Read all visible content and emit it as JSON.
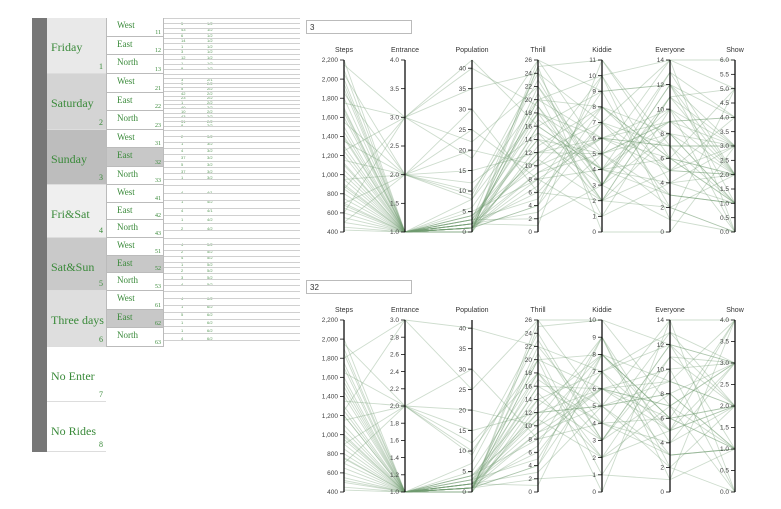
{
  "tree": {
    "days": [
      {
        "name": "Friday",
        "id": "1",
        "regions": [
          {
            "name": "West",
            "id": "11"
          },
          {
            "name": "East",
            "id": "12"
          },
          {
            "name": "North",
            "id": "13"
          }
        ],
        "cells": [
          [
            "5",
            "1/2"
          ],
          [
            "43",
            "1/2"
          ],
          [
            "6",
            "1/2"
          ],
          [
            "14",
            "1/2"
          ],
          [
            "1",
            "1/2"
          ],
          [
            "3",
            "1/2"
          ],
          [
            "12",
            "1/2"
          ],
          [
            "1",
            "1/2"
          ],
          [
            "9",
            "1/2"
          ]
        ]
      },
      {
        "name": "Saturday",
        "id": "2",
        "regions": [
          {
            "name": "West",
            "id": "21"
          },
          {
            "name": "East",
            "id": "22"
          },
          {
            "name": "North",
            "id": "23"
          }
        ],
        "cells": [
          [
            "3",
            "2/1"
          ],
          [
            "9",
            "2/2"
          ],
          [
            "5",
            "2/2"
          ],
          [
            "42",
            "2/2"
          ],
          [
            "23",
            "2/2"
          ],
          [
            "1",
            "2/2"
          ],
          [
            "40",
            "2/2"
          ],
          [
            "10",
            "2/2"
          ],
          [
            "43",
            "2/2"
          ],
          [
            "31",
            "2/2"
          ],
          [
            "8",
            "2/2"
          ]
        ]
      },
      {
        "name": "Sunday",
        "id": "3",
        "regions": [
          {
            "name": "West",
            "id": "31"
          },
          {
            "name": "East",
            "id": "32"
          },
          {
            "name": "North",
            "id": "33"
          }
        ],
        "cells": [
          [
            "2",
            "3/2"
          ],
          [
            "1",
            "3/2"
          ],
          [
            "4",
            "3/2"
          ],
          [
            "37",
            "3/2"
          ],
          [
            "5",
            "3/2"
          ],
          [
            "37",
            "3/2"
          ],
          [
            "1",
            "3/2"
          ]
        ]
      },
      {
        "name": "Fri&Sat",
        "id": "4",
        "regions": [
          {
            "name": "West",
            "id": "41"
          },
          {
            "name": "East",
            "id": "42"
          },
          {
            "name": "North",
            "id": "43"
          }
        ],
        "cells": [
          [
            "4",
            "4/1"
          ],
          [
            "1",
            "4/2"
          ],
          [
            "4",
            "4/1"
          ],
          [
            "1",
            "4/2"
          ],
          [
            "2",
            "4/2"
          ]
        ]
      },
      {
        "name": "Sat&Sun",
        "id": "5",
        "regions": [
          {
            "name": "West",
            "id": "51"
          },
          {
            "name": "East",
            "id": "52"
          },
          {
            "name": "North",
            "id": "53"
          }
        ],
        "cells": [
          [
            "4",
            "5/2"
          ],
          [
            "2",
            "5/2"
          ],
          [
            "4",
            "5/2"
          ],
          [
            "1",
            "5/2"
          ],
          [
            "2",
            "5/2"
          ],
          [
            "3",
            "5/2"
          ],
          [
            "4",
            "5/2"
          ]
        ]
      },
      {
        "name": "Three days",
        "id": "6",
        "regions": [
          {
            "name": "West",
            "id": "61"
          },
          {
            "name": "East",
            "id": "62"
          },
          {
            "name": "North",
            "id": "63"
          }
        ],
        "cells": [
          [
            "4",
            "6/2"
          ],
          [
            "1",
            "6/2"
          ],
          [
            "5",
            "6/2"
          ],
          [
            "1",
            "6/2"
          ],
          [
            "1",
            "6/2"
          ],
          [
            "4",
            "6/2"
          ]
        ]
      },
      {
        "name": "No Enter",
        "id": "7",
        "regions": [],
        "cells": []
      },
      {
        "name": "No Rides",
        "id": "8",
        "regions": [],
        "cells": []
      }
    ]
  },
  "colors": {
    "line": "#6f9a6f",
    "label": "#3a8a3a",
    "bar": "#777777",
    "selected": "#c8c8c8"
  },
  "chart_data": [
    {
      "type": "parallel-coordinates",
      "box_label": "3",
      "axes": [
        {
          "name": "Steps",
          "min": 400,
          "max": 2200,
          "ticks": [
            400,
            600,
            800,
            1000,
            1200,
            1400,
            1600,
            1800,
            2000,
            2200
          ],
          "fmt": "comma"
        },
        {
          "name": "Entrance",
          "min": 1,
          "max": 4,
          "ticks": [
            1.0,
            1.5,
            2.0,
            2.5,
            3.0,
            3.5,
            4.0
          ],
          "fmt": "1dp"
        },
        {
          "name": "Population",
          "min": 0,
          "max": 42,
          "ticks": [
            0,
            5,
            10,
            15,
            20,
            25,
            30,
            35,
            40
          ],
          "fmt": "int"
        },
        {
          "name": "Thrill",
          "min": 0,
          "max": 26,
          "ticks": [
            0,
            2,
            4,
            6,
            8,
            10,
            12,
            14,
            16,
            18,
            20,
            22,
            24,
            26
          ],
          "fmt": "int"
        },
        {
          "name": "Kiddie",
          "min": 0,
          "max": 11,
          "ticks": [
            0,
            1,
            2,
            3,
            4,
            5,
            6,
            7,
            8,
            9,
            10,
            11
          ],
          "fmt": "int"
        },
        {
          "name": "Everyone",
          "min": 0,
          "max": 14,
          "ticks": [
            0,
            2,
            4,
            6,
            8,
            10,
            12,
            14
          ],
          "fmt": "int"
        },
        {
          "name": "Show",
          "min": 0,
          "max": 6,
          "ticks": [
            0.0,
            0.5,
            1.0,
            1.5,
            2.0,
            2.5,
            3.0,
            3.5,
            4.0,
            4.5,
            5.0,
            5.5,
            6.0
          ],
          "fmt": "1dp"
        }
      ],
      "records": [
        [
          2200,
          1,
          1,
          20,
          8,
          8,
          2
        ],
        [
          2100,
          1,
          2,
          18,
          6,
          10,
          3
        ],
        [
          2000,
          1,
          1,
          22,
          4,
          6,
          1
        ],
        [
          1900,
          1,
          0,
          16,
          9,
          12,
          2
        ],
        [
          1800,
          1,
          3,
          14,
          5,
          9,
          3
        ],
        [
          1700,
          1,
          1,
          12,
          7,
          7,
          1
        ],
        [
          1650,
          1,
          2,
          19,
          3,
          11,
          2
        ],
        [
          1600,
          1,
          4,
          10,
          6,
          5,
          4
        ],
        [
          1500,
          1,
          1,
          15,
          2,
          8,
          1
        ],
        [
          1450,
          1,
          0,
          13,
          8,
          6,
          2
        ],
        [
          1400,
          1,
          2,
          11,
          10,
          4,
          3
        ],
        [
          1300,
          1,
          1,
          9,
          5,
          3,
          1
        ],
        [
          1250,
          1,
          3,
          17,
          4,
          13,
          2
        ],
        [
          1200,
          1,
          5,
          8,
          6,
          7,
          3
        ],
        [
          1100,
          1,
          2,
          21,
          1,
          10,
          0
        ],
        [
          1050,
          1,
          1,
          7,
          9,
          2,
          2
        ],
        [
          1000,
          1,
          4,
          14,
          3,
          8,
          1
        ],
        [
          950,
          1,
          2,
          6,
          7,
          5,
          2
        ],
        [
          900,
          1,
          1,
          12,
          5,
          9,
          4
        ],
        [
          850,
          1,
          6,
          18,
          2,
          11,
          3
        ],
        [
          800,
          1,
          3,
          5,
          8,
          6,
          1
        ],
        [
          750,
          1,
          1,
          16,
          4,
          4,
          2
        ],
        [
          700,
          1,
          2,
          9,
          6,
          7,
          0
        ],
        [
          650,
          1,
          8,
          23,
          3,
          12,
          3
        ],
        [
          600,
          1,
          1,
          4,
          7,
          3,
          1
        ],
        [
          550,
          1,
          4,
          11,
          2,
          5,
          2
        ],
        [
          500,
          1,
          2,
          3,
          5,
          2,
          0
        ],
        [
          450,
          1,
          1,
          8,
          1,
          4,
          1
        ],
        [
          420,
          1,
          3,
          2,
          3,
          1,
          0
        ],
        [
          2050,
          2,
          10,
          20,
          6,
          9,
          2
        ],
        [
          1850,
          2,
          8,
          18,
          5,
          8,
          3
        ],
        [
          1550,
          2,
          12,
          15,
          4,
          10,
          2
        ],
        [
          1350,
          2,
          9,
          24,
          3,
          12,
          1
        ],
        [
          1150,
          2,
          15,
          12,
          6,
          6,
          2
        ],
        [
          950,
          2,
          20,
          10,
          8,
          5,
          3
        ],
        [
          700,
          2,
          25,
          8,
          4,
          3,
          1
        ],
        [
          500,
          2,
          30,
          6,
          2,
          2,
          0
        ],
        [
          2150,
          3,
          18,
          26,
          5,
          14,
          5
        ],
        [
          1750,
          3,
          22,
          22,
          3,
          13,
          4
        ],
        [
          1250,
          3,
          35,
          24,
          7,
          14,
          6
        ],
        [
          850,
          3,
          40,
          19,
          2,
          11,
          5
        ],
        [
          600,
          3,
          42,
          16,
          4,
          9,
          4
        ],
        [
          1950,
          1,
          0,
          25,
          11,
          7,
          3
        ],
        [
          1680,
          1,
          1,
          4,
          10,
          1,
          5
        ],
        [
          1380,
          1,
          0,
          26,
          9,
          12,
          4
        ],
        [
          1120,
          1,
          2,
          1,
          11,
          6,
          5
        ],
        [
          880,
          1,
          1,
          20,
          10,
          14,
          0
        ],
        [
          680,
          1,
          3,
          25,
          0,
          0,
          3
        ]
      ]
    },
    {
      "type": "parallel-coordinates",
      "box_label": "32",
      "axes": [
        {
          "name": "Steps",
          "min": 400,
          "max": 2200,
          "ticks": [
            400,
            600,
            800,
            1000,
            1200,
            1400,
            1600,
            1800,
            2000,
            2200
          ],
          "fmt": "comma"
        },
        {
          "name": "Entrance",
          "min": 1,
          "max": 3,
          "ticks": [
            1.0,
            1.2,
            1.4,
            1.6,
            1.8,
            2.0,
            2.2,
            2.4,
            2.6,
            2.8,
            3.0
          ],
          "fmt": "1dp"
        },
        {
          "name": "Population",
          "min": 0,
          "max": 42,
          "ticks": [
            0,
            5,
            10,
            15,
            20,
            25,
            30,
            35,
            40
          ],
          "fmt": "int"
        },
        {
          "name": "Thrill",
          "min": 0,
          "max": 26,
          "ticks": [
            0,
            2,
            4,
            6,
            8,
            10,
            12,
            14,
            16,
            18,
            20,
            22,
            24,
            26
          ],
          "fmt": "int"
        },
        {
          "name": "Kiddie",
          "min": 0,
          "max": 10,
          "ticks": [
            0,
            1,
            2,
            3,
            4,
            5,
            6,
            7,
            8,
            9,
            10
          ],
          "fmt": "int"
        },
        {
          "name": "Everyone",
          "min": 0,
          "max": 14,
          "ticks": [
            0,
            2,
            4,
            6,
            8,
            10,
            12,
            14
          ],
          "fmt": "int"
        },
        {
          "name": "Show",
          "min": 0,
          "max": 4,
          "ticks": [
            0.0,
            0.5,
            1.0,
            1.5,
            2.0,
            2.5,
            3.0,
            3.5,
            4.0
          ],
          "fmt": "1dp"
        }
      ],
      "records": [
        [
          2000,
          1,
          1,
          20,
          8,
          9,
          2
        ],
        [
          1900,
          1,
          2,
          16,
          6,
          10,
          3
        ],
        [
          1850,
          1,
          1,
          22,
          4,
          6,
          1
        ],
        [
          1750,
          1,
          0,
          14,
          7,
          12,
          2
        ],
        [
          1700,
          1,
          3,
          12,
          5,
          8,
          1
        ],
        [
          1600,
          1,
          1,
          18,
          3,
          11,
          2
        ],
        [
          1500,
          1,
          2,
          10,
          6,
          5,
          4
        ],
        [
          1450,
          1,
          1,
          15,
          2,
          7,
          1
        ],
        [
          1400,
          1,
          0,
          13,
          8,
          6,
          2
        ],
        [
          1300,
          1,
          2,
          11,
          9,
          4,
          3
        ],
        [
          1250,
          1,
          1,
          9,
          5,
          3,
          1
        ],
        [
          1200,
          1,
          3,
          17,
          4,
          13,
          2
        ],
        [
          1100,
          1,
          4,
          8,
          6,
          7,
          3
        ],
        [
          1050,
          1,
          2,
          21,
          1,
          10,
          0
        ],
        [
          1000,
          1,
          1,
          7,
          9,
          2,
          2
        ],
        [
          950,
          1,
          4,
          14,
          3,
          8,
          1
        ],
        [
          900,
          1,
          2,
          6,
          7,
          5,
          2
        ],
        [
          850,
          1,
          1,
          12,
          5,
          9,
          4
        ],
        [
          800,
          1,
          5,
          18,
          2,
          11,
          3
        ],
        [
          750,
          1,
          3,
          5,
          8,
          6,
          1
        ],
        [
          700,
          1,
          1,
          16,
          4,
          4,
          2
        ],
        [
          650,
          1,
          2,
          9,
          6,
          7,
          0
        ],
        [
          600,
          1,
          7,
          23,
          3,
          12,
          3
        ],
        [
          550,
          1,
          1,
          4,
          7,
          3,
          1
        ],
        [
          500,
          1,
          4,
          11,
          2,
          5,
          2
        ],
        [
          450,
          1,
          2,
          3,
          5,
          2,
          0
        ],
        [
          420,
          1,
          1,
          2,
          1,
          1,
          1
        ],
        [
          1950,
          2,
          10,
          20,
          6,
          9,
          2
        ],
        [
          1650,
          2,
          12,
          18,
          5,
          8,
          3
        ],
        [
          1350,
          2,
          9,
          24,
          3,
          12,
          1
        ],
        [
          1150,
          2,
          15,
          12,
          6,
          6,
          2
        ],
        [
          900,
          2,
          20,
          10,
          8,
          5,
          3
        ],
        [
          700,
          2,
          30,
          8,
          4,
          3,
          1
        ],
        [
          1800,
          3,
          25,
          26,
          5,
          14,
          4
        ],
        [
          1250,
          3,
          40,
          22,
          7,
          13,
          3
        ],
        [
          1550,
          1,
          0,
          25,
          10,
          7,
          3
        ],
        [
          1200,
          1,
          1,
          4,
          9,
          1,
          4
        ],
        [
          980,
          1,
          0,
          26,
          10,
          12,
          3
        ],
        [
          760,
          1,
          2,
          1,
          8,
          6,
          4
        ],
        [
          520,
          1,
          1,
          20,
          0,
          14,
          0
        ]
      ]
    }
  ]
}
